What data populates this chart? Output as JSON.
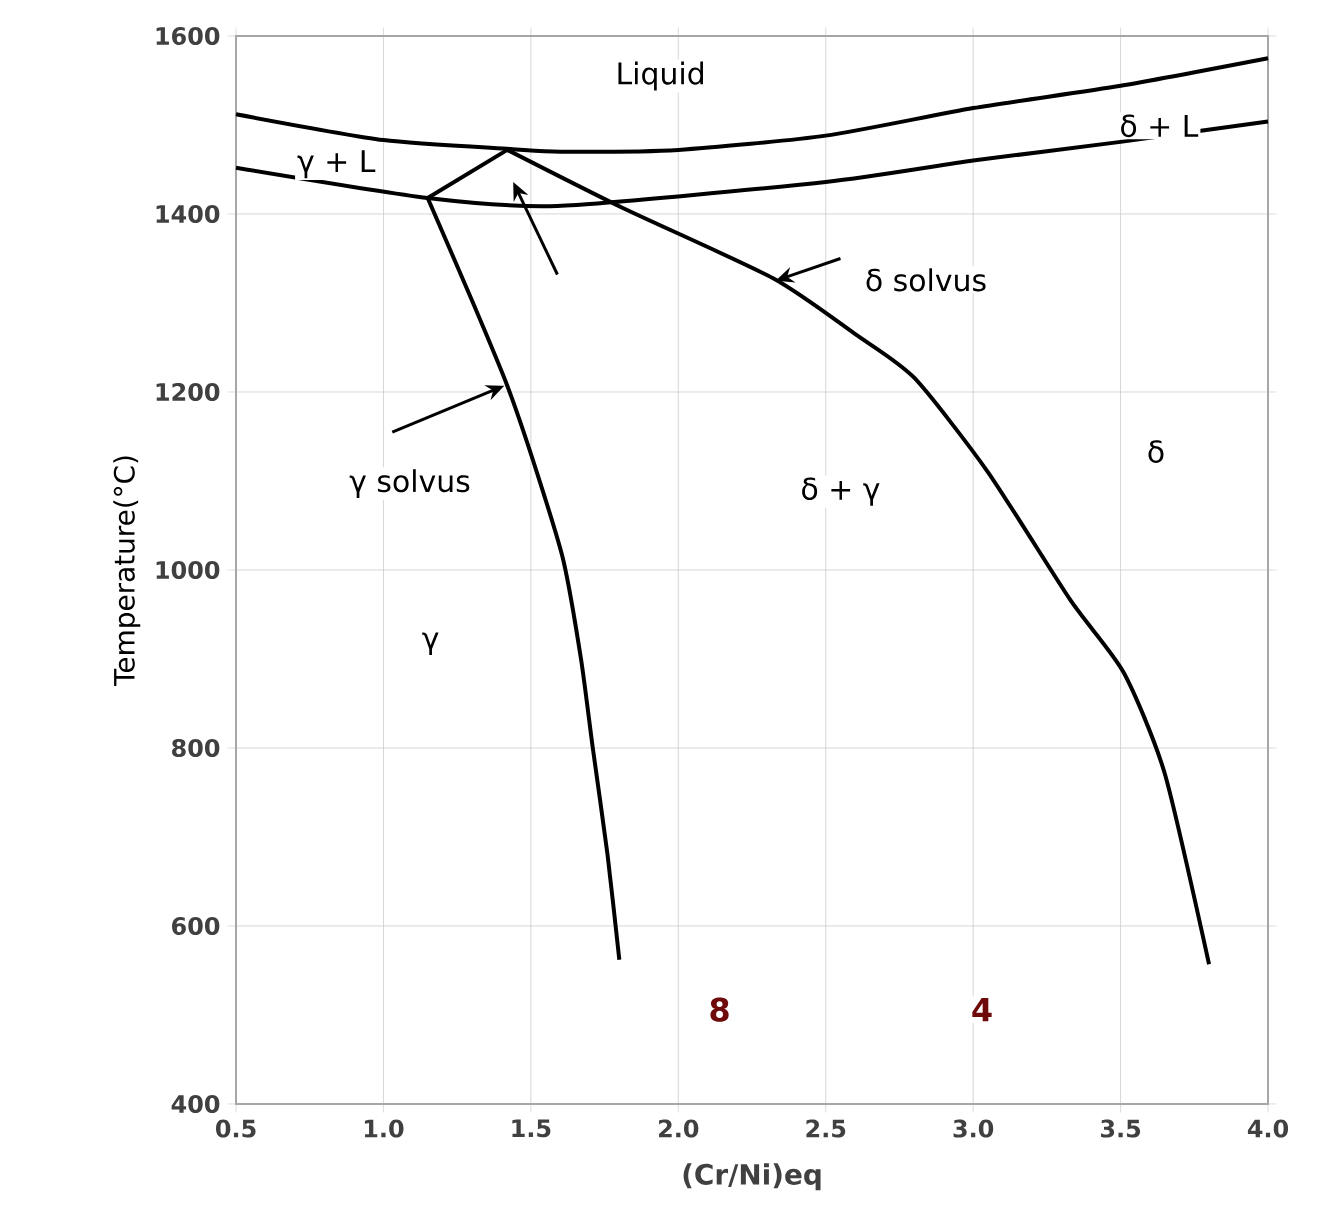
{
  "chart_data": {
    "type": "line",
    "xlabel": "(Cr/Ni)eq",
    "ylabel": "Temperature(°C)",
    "xlim": [
      0.5,
      4.0
    ],
    "xticks": [
      {
        "value": 0.5,
        "label": "0.5"
      },
      {
        "value": 1.0,
        "label": "1.0"
      },
      {
        "value": 1.5,
        "label": "1.5"
      },
      {
        "value": 2.0,
        "label": "2.0"
      },
      {
        "value": 2.5,
        "label": "2.5"
      },
      {
        "value": 3.0,
        "label": "3.0"
      },
      {
        "value": 3.5,
        "label": "3.5"
      },
      {
        "value": 4.0,
        "label": "4.0"
      }
    ],
    "ylim": [
      400,
      1600
    ],
    "yticks": [
      400,
      600,
      800,
      1000,
      1200,
      1400,
      1600
    ],
    "grid": true,
    "marker": "none",
    "line_style": "solid",
    "series": [
      {
        "color": "#000000",
        "x": [
          0.5,
          1.0,
          1.43,
          1.6,
          2.0,
          2.5,
          3.0,
          3.5,
          4.0
        ],
        "values": [
          1512,
          1483,
          1473,
          1470,
          1472,
          1488,
          1519,
          1544,
          1575
        ]
      },
      {
        "color": "#000000",
        "x": [
          0.5,
          1.15,
          1.59,
          2.5,
          3.0,
          3.5,
          4.0
        ],
        "values": [
          1452,
          1418,
          1409,
          1436,
          1460,
          1481,
          1504
        ]
      },
      {
        "color": "#000000",
        "x": [
          1.15,
          1.42
        ],
        "values": [
          1418,
          1472
        ]
      },
      {
        "color": "#000000",
        "x": [
          1.15,
          1.3,
          1.42,
          1.52,
          1.61,
          1.67,
          1.71,
          1.76,
          1.8
        ],
        "values": [
          1418,
          1303,
          1207,
          1110,
          1011,
          900,
          800,
          680,
          562
        ]
      },
      {
        "color": "#000000",
        "x": [
          1.42,
          1.81,
          2.32,
          2.6,
          2.8,
          3.05,
          3.33,
          3.51,
          3.65,
          3.8
        ],
        "values": [
          1472,
          1407,
          1328,
          1265,
          1216,
          1110,
          966,
          885,
          771,
          557
        ]
      }
    ],
    "annotations": [
      "Liquid",
      {
        "text": "γ + L",
        "x": 0.84,
        "y": 1456
      },
      {
        "text": "δ + L",
        "x": 3.63,
        "y": 1499
      },
      {
        "text": "δ solvus",
        "x": 2.33,
        "y": 1325
      },
      {
        "text": "γ solvus",
        "x": 1.41,
        "y": 1207
      },
      {
        "text": "δ + γ",
        "x": 2.55,
        "y": 1088
      },
      {
        "text": "δ",
        "x": 3.62,
        "y": 1133
      },
      {
        "text": "γ",
        "x": 1.16,
        "y": 917
      },
      {
        "text": "8",
        "x": 2.14,
        "y": 506
      },
      {
        "text": "4",
        "x": 3.03,
        "y": 506
      }
    ]
  }
}
